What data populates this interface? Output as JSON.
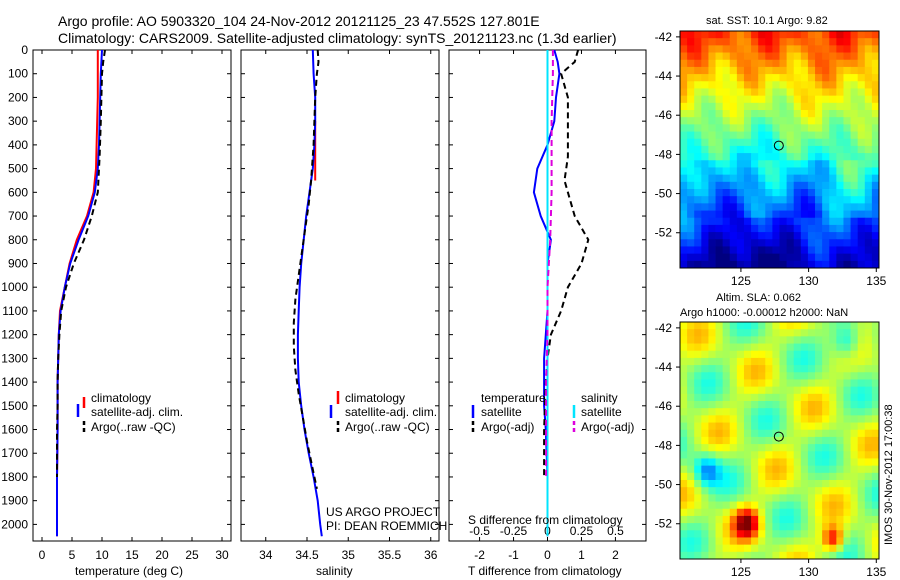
{
  "header": {
    "line1": "Argo profile: AO 5903320_104 24-Nov-2012 20121125_23 47.552S 127.801E",
    "line2": "Climatology: CARS2009. Satellite-adjusted climatology: synTS_20121123.nc (1.3d earlier)"
  },
  "colors": {
    "climatology": "#ff0000",
    "satellite": "#0000ff",
    "argo": "#000000",
    "sal_satellite": "#00e5ff",
    "sal_argo": "#dd00dd"
  },
  "chart_data": [
    {
      "id": "temperature",
      "type": "line",
      "xlabel": "temperature (deg C)",
      "ylabel": "",
      "xlim": [
        -1.5,
        31.5
      ],
      "ylim": [
        2070,
        0
      ],
      "xticks": [
        0,
        5,
        10,
        15,
        20,
        25,
        30
      ],
      "yticks": [
        0,
        100,
        200,
        300,
        400,
        500,
        600,
        700,
        800,
        900,
        1000,
        1100,
        1200,
        1300,
        1400,
        1500,
        1600,
        1700,
        1800,
        1900,
        2000
      ],
      "legend": [
        "climatology",
        "satellite-adj. clim.",
        "Argo(..raw -QC)"
      ],
      "legend_placement": "lower-right",
      "series": [
        {
          "name": "climatology",
          "style": "solid",
          "color": "#ff0000",
          "x": [
            9.3,
            9.3,
            9.3,
            9.2,
            9.1,
            9.0,
            8.6,
            7.5,
            5.8,
            4.6,
            3.8,
            3.0,
            2.8,
            2.7,
            2.6,
            2.6,
            2.6,
            2.5,
            2.5,
            2.5
          ],
          "y": [
            0,
            100,
            200,
            300,
            400,
            500,
            600,
            700,
            800,
            900,
            1000,
            1100,
            1200,
            1300,
            1400,
            1500,
            1600,
            1800,
            1900,
            2050
          ]
        },
        {
          "name": "satellite-adj. clim.",
          "style": "solid",
          "color": "#0000ff",
          "x": [
            10.0,
            9.8,
            9.7,
            9.6,
            9.5,
            9.3,
            8.8,
            7.7,
            6.1,
            4.7,
            3.8,
            3.1,
            2.8,
            2.7,
            2.6,
            2.6,
            2.6,
            2.5,
            2.5,
            2.5
          ],
          "y": [
            0,
            100,
            200,
            300,
            400,
            500,
            600,
            700,
            800,
            900,
            1000,
            1100,
            1200,
            1300,
            1400,
            1500,
            1600,
            1800,
            1900,
            2050
          ]
        },
        {
          "name": "Argo(..raw -QC)",
          "style": "dashed",
          "color": "#000000",
          "x": [
            10.5,
            10.2,
            10.0,
            9.9,
            9.8,
            9.6,
            9.3,
            8.3,
            7.0,
            5.3,
            4.0,
            3.2,
            2.9,
            2.7,
            2.6,
            2.6,
            2.5,
            2.5
          ],
          "y": [
            0,
            50,
            100,
            200,
            300,
            450,
            600,
            700,
            800,
            900,
            1000,
            1100,
            1200,
            1300,
            1400,
            1500,
            1600,
            1800
          ]
        }
      ]
    },
    {
      "id": "salinity",
      "type": "line",
      "xlabel": "salinity",
      "ylabel": "",
      "xlim": [
        33.7,
        36.1
      ],
      "ylim": [
        2070,
        0
      ],
      "xticks": [
        34,
        34.5,
        35,
        35.5,
        36
      ],
      "xticklabels": [
        "34",
        "34.5",
        "35",
        "35.5",
        "36"
      ],
      "legend": [
        "climatology",
        "satellite-adj. clim.",
        "Argo(..raw -QC)"
      ],
      "legend_placement": "lower-right",
      "annotation": [
        "US ARGO PROJECT",
        "PI: DEAN ROEMMICH"
      ],
      "series": [
        {
          "name": "climatology",
          "style": "solid",
          "color": "#ff0000",
          "x": [
            34.6,
            34.6,
            34.6,
            34.6,
            34.6,
            34.6
          ],
          "y": [
            300,
            350,
            400,
            450,
            500,
            550
          ]
        },
        {
          "name": "satellite-adj. clim.",
          "style": "solid",
          "color": "#0000ff",
          "x": [
            34.57,
            34.58,
            34.6,
            34.6,
            34.59,
            34.57,
            34.53,
            34.49,
            34.46,
            34.43,
            34.41,
            34.4,
            34.39,
            34.39,
            34.4,
            34.43,
            34.47,
            34.52,
            34.58,
            34.63,
            34.66,
            34.68
          ],
          "y": [
            0,
            100,
            200,
            300,
            400,
            500,
            600,
            700,
            800,
            900,
            1000,
            1100,
            1200,
            1300,
            1400,
            1500,
            1600,
            1700,
            1800,
            1900,
            2000,
            2050
          ]
        },
        {
          "name": "Argo(..raw -QC)",
          "style": "dashed",
          "color": "#000000",
          "x": [
            34.63,
            34.64,
            34.62,
            34.6,
            34.58,
            34.55,
            34.52,
            34.48,
            34.44,
            34.4,
            34.36,
            34.34,
            34.34,
            34.36,
            34.4,
            34.45,
            34.5,
            34.56,
            34.62
          ],
          "y": [
            0,
            50,
            100,
            200,
            400,
            550,
            650,
            750,
            850,
            950,
            1050,
            1150,
            1250,
            1350,
            1450,
            1550,
            1650,
            1750,
            1850
          ]
        }
      ]
    },
    {
      "id": "difference",
      "type": "line",
      "xlabel": "T difference from climatology",
      "xlabel_top": "S difference from climatology",
      "ylabel": "",
      "xlim": [
        -2.9,
        2.9
      ],
      "ylim": [
        2070,
        0
      ],
      "xticks": [
        -2,
        -1,
        0,
        1,
        2
      ],
      "sticks": [
        -0.5,
        -0.25,
        0,
        0.25,
        0.5
      ],
      "sticklabels": [
        "-0.5",
        "-0.25",
        "0",
        "0.25",
        "0.5"
      ],
      "legend_left": [
        "temperature",
        "satellite",
        "Argo(-adj)"
      ],
      "legend_right": [
        "salinity",
        "satellite",
        "Argo(-adj)"
      ],
      "series": [
        {
          "name": "temperature satellite",
          "style": "solid",
          "color": "#0000ff",
          "x": [
            0.2,
            0.3,
            0.35,
            0.25,
            0.2,
            0.0,
            -0.3,
            -0.4,
            -0.2,
            0.1,
            0.0,
            0.0,
            0.0,
            -0.05,
            -0.1,
            -0.1,
            -0.1,
            -0.05,
            0.0,
            0.0
          ],
          "y": [
            0,
            50,
            100,
            200,
            300,
            400,
            500,
            600,
            700,
            800,
            900,
            1000,
            1100,
            1200,
            1300,
            1400,
            1500,
            1600,
            1800,
            2050
          ]
        },
        {
          "name": "temperature Argo(-adj)",
          "style": "dashed",
          "color": "#000000",
          "x": [
            0.9,
            0.8,
            0.4,
            0.6,
            0.6,
            0.6,
            0.5,
            0.7,
            0.8,
            1.2,
            1.0,
            0.6,
            0.4,
            0.1,
            0.0,
            -0.05,
            -0.1,
            -0.1
          ],
          "y": [
            0,
            50,
            100,
            200,
            300,
            450,
            550,
            650,
            700,
            800,
            900,
            1000,
            1100,
            1200,
            1300,
            1400,
            1600,
            1800
          ]
        },
        {
          "name": "salinity satellite",
          "style": "solid",
          "color": "#00e5ff",
          "x": [
            0.0,
            0.0,
            0.0,
            0.0,
            0.0,
            0.0,
            0.0,
            0.0
          ],
          "y": [
            0,
            200,
            400,
            600,
            800,
            1200,
            1600,
            2050
          ]
        },
        {
          "name": "salinity Argo(-adj)",
          "style": "dashed",
          "color": "#dd00dd",
          "x": [
            0.04,
            0.04,
            0.03,
            0.03,
            0.02,
            0.0,
            0.0,
            -0.01,
            -0.01,
            -0.01
          ],
          "y": [
            0,
            100,
            300,
            600,
            800,
            1000,
            1200,
            1400,
            1600,
            1800
          ]
        }
      ]
    },
    {
      "id": "sst_map",
      "type": "heatmap",
      "title": "sat. SST: 10.1  Argo: 9.82",
      "xlim": [
        120.5,
        135.2
      ],
      "ylim": [
        -53.8,
        -41.7
      ],
      "xticks": [
        125,
        130,
        135
      ],
      "yticks": [
        -42,
        -44,
        -46,
        -48,
        -50,
        -52
      ],
      "marker": {
        "lon": 127.8,
        "lat": -47.55
      }
    },
    {
      "id": "sla_map",
      "type": "heatmap",
      "title_line1": "Altim. SLA: 0.062",
      "title_line2": "Argo h1000: -0.00012 h2000: NaN",
      "xlim": [
        120.5,
        135.2
      ],
      "ylim": [
        -53.8,
        -41.7
      ],
      "xticks": [
        125,
        130,
        135
      ],
      "yticks": [
        -42,
        -44,
        -46,
        -48,
        -50,
        -52
      ],
      "marker": {
        "lon": 127.8,
        "lat": -47.55
      }
    }
  ],
  "watermark": "IMOS 30-Nov-2012 17:00:38"
}
